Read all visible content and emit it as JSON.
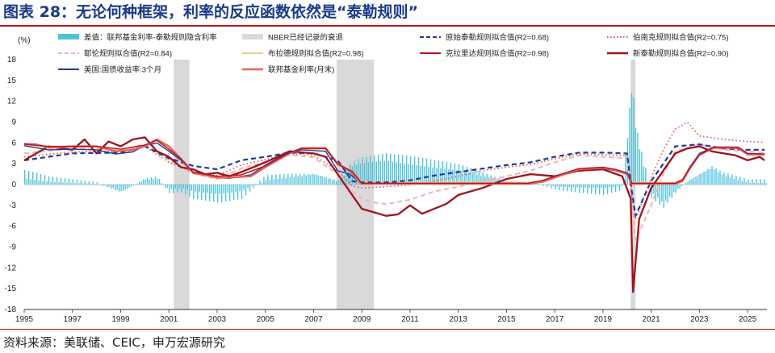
{
  "header": {
    "title": "图表 28：无论何种框架，利率的反应函数依然是“泰勒规则”"
  },
  "footer": {
    "source": "资料来源：美联储、CEIC，申万宏源研究"
  },
  "chart_data": {
    "type": "line",
    "ylabel": "(%)",
    "ylim": [
      -18,
      18
    ],
    "yticks": [
      18,
      15,
      12,
      9,
      6,
      3,
      0,
      -3,
      -6,
      -9,
      -12,
      -15,
      -18
    ],
    "xlim": [
      1995,
      2025.8
    ],
    "xticks": [
      "1995",
      "1997",
      "1999",
      "2001",
      "2003",
      "2005",
      "2007",
      "2009",
      "2011",
      "2013",
      "2015",
      "2017",
      "2019",
      "2021",
      "2023",
      "2025"
    ],
    "recessions": [
      [
        2001.2,
        2001.85
      ],
      [
        2007.95,
        2009.5
      ],
      [
        2020.15,
        2020.35
      ]
    ],
    "legend": [
      {
        "key": "spread",
        "label": "差值：联邦基金利率-泰勒规则隐含利率",
        "color": "#4fc3dc",
        "style": "bar"
      },
      {
        "key": "nber",
        "label": "NBER已经记录的衰退",
        "color": "#d9d9d9",
        "style": "area"
      },
      {
        "key": "original",
        "label": "原始泰勒规则拟合值(R2=0.68)",
        "color": "#1f3c99",
        "style": "dash"
      },
      {
        "key": "bernanke",
        "label": "伯南克规则拟合值(R2=0.75)",
        "color": "#e05a5a",
        "style": "dot"
      },
      {
        "key": "yellen",
        "label": "耶伦规则拟合值(R2=0.84)",
        "color": "#f3b3b3",
        "style": "dash-light"
      },
      {
        "key": "brainard",
        "label": "布拉德规则拟合值(R2=0.98)",
        "color": "#f0cf85",
        "style": "solid"
      },
      {
        "key": "clarida",
        "label": "克拉里达规则拟合值(R2=0.98)",
        "color": "#b5121b",
        "style": "solid"
      },
      {
        "key": "newtaylor",
        "label": "新泰勒规则拟合值(R2=0.90)",
        "color": "#a0121a",
        "style": "solid-thick"
      },
      {
        "key": "tbill",
        "label": "美国:国债收益率:3个月",
        "color": "#1f3c99",
        "style": "solid"
      },
      {
        "key": "ffr",
        "label": "联邦基金利率(月末)",
        "color": "#e46363",
        "style": "solid-thick"
      }
    ],
    "series": [
      {
        "name": "联邦基金利率(月末)",
        "x": [
          1995,
          1995.5,
          1996,
          1997,
          1998,
          1998.8,
          1999.5,
          2000,
          2000.5,
          2001,
          2001.5,
          2002,
          2003,
          2003.5,
          2004.4,
          2005,
          2006,
          2006.5,
          2007.5,
          2008,
          2008.5,
          2008.95,
          2009,
          2015.9,
          2016.5,
          2017,
          2018,
          2019,
          2019.5,
          2020,
          2020.2,
          2022,
          2022.3,
          2022.6,
          2023,
          2023.6,
          2024.6,
          2025,
          2025.7
        ],
        "y": [
          5.9,
          5.8,
          5.3,
          5.5,
          5.5,
          4.8,
          5.0,
          5.5,
          6.5,
          5.5,
          3.7,
          1.7,
          1.0,
          1.0,
          1.2,
          2.5,
          4.5,
          5.25,
          5.25,
          3.0,
          2.0,
          0.2,
          0.1,
          0.1,
          0.4,
          1.0,
          2.2,
          2.4,
          2.1,
          1.6,
          0.1,
          0.1,
          0.5,
          2.3,
          4.3,
          5.3,
          5.3,
          4.4,
          4.35
        ]
      },
      {
        "name": "美国:国债收益率:3个月",
        "x": [
          1995,
          1996,
          1997,
          1998,
          1998.8,
          1999.5,
          2000,
          2000.5,
          2001,
          2001.5,
          2002,
          2003,
          2003.5,
          2004.4,
          2005,
          2006,
          2006.5,
          2007.5,
          2008,
          2008.5,
          2009,
          2015.9,
          2016.5,
          2017,
          2018,
          2019,
          2019.5,
          2020,
          2020.2,
          2022,
          2022.3,
          2022.6,
          2023,
          2023.6,
          2024.6,
          2025,
          2025.7
        ],
        "y": [
          5.6,
          5.0,
          5.1,
          5.0,
          4.4,
          4.7,
          5.6,
          6.0,
          4.8,
          3.5,
          1.7,
          1.0,
          0.9,
          1.4,
          2.8,
          4.7,
          5.0,
          4.8,
          2.0,
          1.5,
          0.1,
          0.1,
          0.4,
          1.0,
          2.3,
          2.3,
          2.0,
          1.5,
          0.1,
          0.1,
          0.6,
          2.5,
          4.5,
          5.4,
          5.2,
          4.3,
          4.3
        ]
      },
      {
        "name": "原始泰勒规则拟合值(R2=0.68)",
        "x": [
          1995,
          1997,
          1999,
          2000,
          2001,
          2002,
          2003,
          2004,
          2005,
          2006,
          2007,
          2008,
          2008.6,
          2009,
          2010,
          2011,
          2012,
          2013,
          2014,
          2015,
          2016,
          2017,
          2018,
          2019,
          2020,
          2020.2,
          2020.35,
          2021,
          2021.5,
          2022,
          2023,
          2024,
          2025,
          2025.7
        ],
        "y": [
          3.5,
          4.5,
          4.6,
          5.5,
          3.8,
          2.7,
          2.2,
          3.5,
          4.0,
          4.6,
          4.5,
          3.5,
          0.5,
          0.3,
          0.3,
          0.6,
          1.3,
          1.8,
          2.3,
          2.8,
          3.2,
          4.0,
          4.6,
          4.6,
          4.5,
          -1.0,
          -4.5,
          0.5,
          3.0,
          5.5,
          5.8,
          5.2,
          5.0,
          5.0
        ]
      },
      {
        "name": "伯南克规则拟合值(R2=0.75)",
        "x": [
          1995,
          1997,
          1999,
          2000,
          2001,
          2002,
          2003,
          2004,
          2005,
          2006,
          2007,
          2008,
          2008.6,
          2009,
          2010,
          2011,
          2012,
          2013,
          2014,
          2015,
          2016,
          2017,
          2018,
          2019,
          2020,
          2020.2,
          2020.35,
          2021,
          2021.5,
          2022,
          2022.5,
          2023,
          2024,
          2025,
          2025.7
        ],
        "y": [
          4.0,
          4.7,
          4.8,
          5.5,
          3.2,
          1.8,
          1.3,
          2.8,
          3.6,
          4.5,
          4.2,
          2.0,
          -0.2,
          -0.5,
          -0.3,
          0.0,
          0.5,
          1.2,
          2.0,
          2.5,
          2.9,
          3.7,
          4.4,
          4.3,
          4.2,
          -1.5,
          -5.0,
          1.0,
          5.0,
          8.0,
          9.0,
          7.0,
          6.5,
          6.2,
          6.1
        ]
      },
      {
        "name": "耶伦规则拟合值(R2=0.84)",
        "x": [
          1995,
          1997,
          1999,
          2000,
          2001,
          2002,
          2003,
          2004,
          2005,
          2006,
          2007,
          2008,
          2008.6,
          2009,
          2009.5,
          2010,
          2011,
          2012,
          2013,
          2014,
          2015,
          2016,
          2017,
          2018,
          2019,
          2020,
          2020.2,
          2020.35,
          2021,
          2021.5,
          2022,
          2023,
          2024,
          2025,
          2025.7
        ],
        "y": [
          4.5,
          5.2,
          5.0,
          5.8,
          3.5,
          1.6,
          0.8,
          2.3,
          3.3,
          4.3,
          3.9,
          1.5,
          -1.0,
          -2.0,
          -2.6,
          -2.8,
          -2.2,
          -1.0,
          -0.3,
          0.5,
          1.2,
          2.0,
          3.2,
          4.2,
          4.0,
          3.8,
          -3.0,
          -8.0,
          -3.0,
          1.5,
          4.8,
          5.8,
          5.0,
          4.8,
          4.6
        ]
      },
      {
        "name": "布拉德规则拟合值(R2=0.98)",
        "x": [
          1995,
          1996,
          1997,
          1998,
          1999,
          2000,
          2000.5,
          2001,
          2001.5,
          2002,
          2003,
          2004,
          2005,
          2006,
          2006.5,
          2007.5,
          2008,
          2008.6,
          2009,
          2015.9,
          2016.5,
          2017,
          2018,
          2019,
          2019.5,
          2020,
          2020.2,
          2022,
          2022.3,
          2022.6,
          2023,
          2023.6,
          2024.6,
          2025,
          2025.7
        ],
        "y": [
          5.7,
          5.4,
          5.4,
          5.4,
          5.0,
          5.6,
          6.3,
          5.0,
          3.6,
          1.7,
          1.1,
          1.3,
          2.6,
          4.5,
          5.1,
          5.1,
          2.8,
          1.8,
          0.3,
          0.3,
          0.5,
          1.1,
          2.2,
          2.4,
          2.1,
          1.6,
          0.3,
          0.3,
          0.8,
          2.5,
          4.4,
          5.3,
          5.3,
          4.4,
          4.3
        ]
      },
      {
        "name": "克拉里达规则拟合值(R2=0.98)",
        "x": [
          1995,
          1996,
          1997,
          1998,
          1999,
          2000,
          2000.5,
          2001,
          2001.5,
          2002,
          2003,
          2004,
          2005,
          2006,
          2006.5,
          2007.5,
          2008,
          2008.6,
          2009,
          2015.9,
          2016.5,
          2017,
          2018,
          2019,
          2019.5,
          2020,
          2020.2,
          2022,
          2022.3,
          2022.6,
          2023,
          2023.6,
          2024.6,
          2025,
          2025.7
        ],
        "y": [
          5.8,
          5.5,
          5.5,
          5.5,
          5.1,
          5.7,
          6.4,
          5.1,
          3.7,
          1.8,
          1.2,
          1.4,
          2.7,
          4.6,
          5.2,
          5.2,
          2.9,
          1.9,
          0.2,
          0.2,
          0.6,
          1.2,
          2.3,
          2.5,
          2.2,
          1.7,
          0.2,
          0.2,
          0.7,
          2.4,
          4.3,
          5.4,
          5.4,
          4.5,
          4.4
        ]
      },
      {
        "name": "新泰勒规则拟合值(R2=0.90)",
        "x": [
          1995,
          1996,
          1997,
          1997.5,
          1998,
          1998.5,
          1999,
          1999.5,
          2000,
          2000.5,
          2001,
          2001.5,
          2002,
          2002.5,
          2003,
          2003.5,
          2004,
          2005,
          2006,
          2007,
          2007.5,
          2008,
          2008.5,
          2009,
          2009.5,
          2010,
          2010.5,
          2011,
          2011.5,
          2012,
          2012.5,
          2013,
          2014,
          2015,
          2016,
          2017,
          2018,
          2019,
          2019.8,
          2020.15,
          2020.25,
          2020.5,
          2021,
          2021.5,
          2022,
          2022.5,
          2023,
          2023.5,
          2024,
          2024.5,
          2025,
          2025.5,
          2025.7
        ],
        "y": [
          3.5,
          5.5,
          5.0,
          6.5,
          4.5,
          6.2,
          5.5,
          6.5,
          6.8,
          4.8,
          4.0,
          2.5,
          2.2,
          1.5,
          1.7,
          1.2,
          1.8,
          3.2,
          4.8,
          4.5,
          4.0,
          1.5,
          -1.0,
          -3.5,
          -4.0,
          -4.5,
          -4.3,
          -3.0,
          -4.2,
          -3.5,
          -2.8,
          -1.5,
          -0.5,
          0.8,
          1.5,
          1.2,
          2.0,
          2.2,
          1.2,
          -2.0,
          -15.5,
          -5.0,
          -0.5,
          2.0,
          4.5,
          5.2,
          5.5,
          4.8,
          4.5,
          4.2,
          3.5,
          4.0,
          3.5
        ]
      }
    ],
    "spread": {
      "x": [
        1995,
        1996,
        1997,
        1998,
        1999,
        2000,
        2000.5,
        2001,
        2001.5,
        2002,
        2003,
        2004,
        2005,
        2006,
        2007,
        2008,
        2008.6,
        2009,
        2010,
        2011,
        2012,
        2013,
        2014,
        2015,
        2016,
        2017,
        2018,
        2019,
        2019.8,
        2020.2,
        2020.25,
        2020.35,
        2020.6,
        2021,
        2021.5,
        2022,
        2022.5,
        2023,
        2023.5,
        2024,
        2024.5,
        2025,
        2025.7
      ],
      "y": [
        1.5,
        0.8,
        0.5,
        0.2,
        -1.0,
        0.8,
        1.0,
        -1.0,
        -0.8,
        -1.5,
        -2.0,
        -1.5,
        1.0,
        1.3,
        1.5,
        0.5,
        3.0,
        3.5,
        4.0,
        3.5,
        3.0,
        2.5,
        1.5,
        0.5,
        0.3,
        -0.5,
        -0.8,
        -1.0,
        -0.5,
        15.0,
        12.0,
        8.0,
        4.0,
        -1.5,
        -3.0,
        -1.0,
        0.5,
        1.5,
        2.5,
        1.5,
        1.0,
        0.5,
        0.5
      ]
    }
  }
}
